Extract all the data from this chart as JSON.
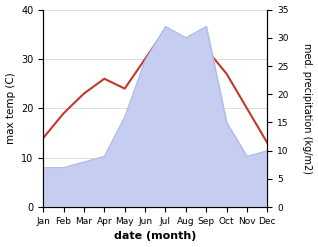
{
  "months": [
    "Jan",
    "Feb",
    "Mar",
    "Apr",
    "May",
    "Jun",
    "Jul",
    "Aug",
    "Sep",
    "Oct",
    "Nov",
    "Dec"
  ],
  "month_indices": [
    1,
    2,
    3,
    4,
    5,
    6,
    7,
    8,
    9,
    10,
    11,
    12
  ],
  "temperature": [
    14,
    19,
    23,
    26,
    24,
    30,
    36,
    34,
    32,
    27,
    20,
    13
  ],
  "precipitation": [
    7,
    7,
    8,
    9,
    16,
    26,
    32,
    30,
    32,
    15,
    9,
    10
  ],
  "temp_color": "#c0392b",
  "precip_fill_color": "#c5cef0",
  "precip_line_color": "#b0b8e8",
  "temp_ylim": [
    0,
    40
  ],
  "precip_ylim": [
    0,
    35
  ],
  "temp_yticks": [
    0,
    10,
    20,
    30,
    40
  ],
  "precip_yticks": [
    0,
    5,
    10,
    15,
    20,
    25,
    30,
    35
  ],
  "xlabel": "date (month)",
  "ylabel_left": "max temp (C)",
  "ylabel_right": "med. precipitation (kg/m2)",
  "background_color": "#ffffff"
}
